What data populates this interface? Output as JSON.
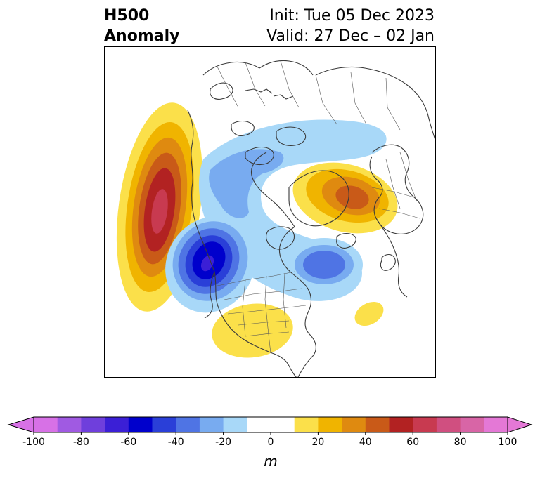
{
  "title": {
    "line1": "H500",
    "line2": "Anomaly",
    "init": "Init: Tue 05 Dec 2023",
    "valid": "Valid: 27 Dec – 02 Jan"
  },
  "colorbar": {
    "unit": "m",
    "ticks": [
      "-100",
      "-80",
      "-60",
      "-40",
      "-20",
      "0",
      "20",
      "40",
      "60",
      "80",
      "100"
    ],
    "colors": [
      "#d771e6",
      "#a05ae2",
      "#6f3fdc",
      "#3b1fd6",
      "#0000cc",
      "#2a3fd8",
      "#4f74e4",
      "#78abf0",
      "#a8d8f8",
      "#ffffff",
      "#ffffff",
      "#fbe04a",
      "#f0b400",
      "#df8a10",
      "#c95a18",
      "#b22222",
      "#c83a50",
      "#d04f80",
      "#d865a6",
      "#e478d6"
    ],
    "arrow_left_color": "#d771e6",
    "arrow_right_color": "#e478d6"
  },
  "map": {
    "projection": "north-polar-stereographic",
    "features": [
      {
        "name": "positive-anomaly-ne-pacific",
        "max_m": 70
      },
      {
        "name": "negative-anomaly-western-canada",
        "min_m": -60
      },
      {
        "name": "negative-anomaly-canadian-arctic",
        "min_m": -30
      },
      {
        "name": "negative-anomaly-north-atlantic",
        "min_m": -40
      },
      {
        "name": "positive-anomaly-northern-europe",
        "max_m": 50
      },
      {
        "name": "positive-anomaly-southern-us",
        "max_m": 10
      },
      {
        "name": "positive-anomaly-central-atlantic",
        "max_m": 10
      }
    ]
  }
}
